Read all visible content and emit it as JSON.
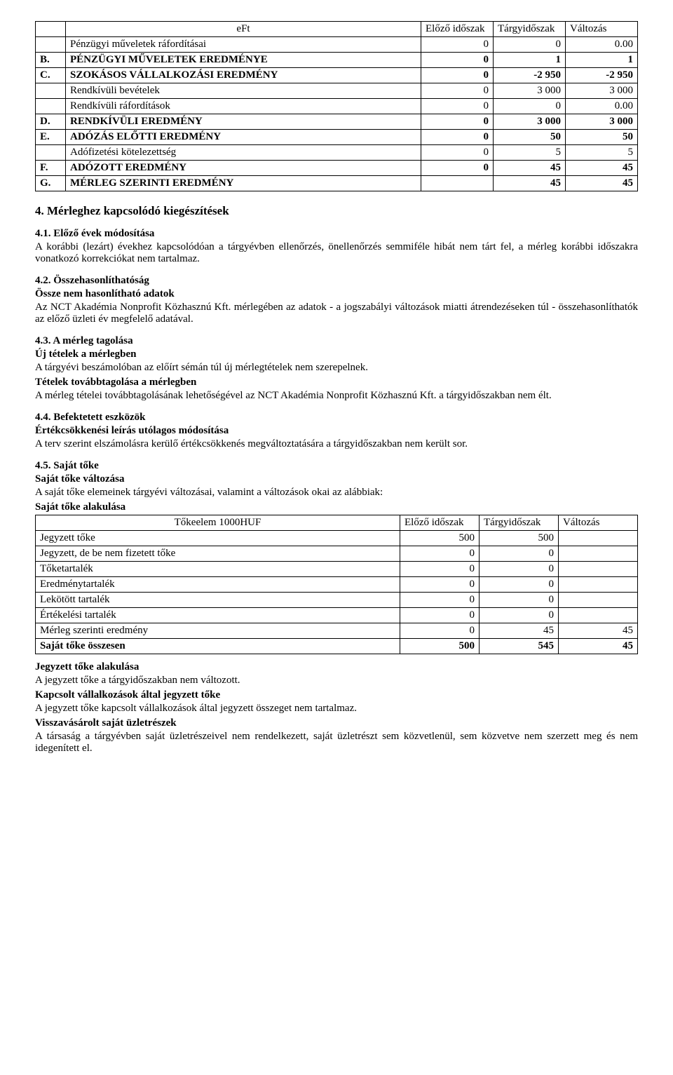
{
  "table1": {
    "headers": [
      "",
      "eFt",
      "Előző időszak",
      "Tárgyidőszak",
      "Változás"
    ],
    "rows": [
      {
        "lbl": "",
        "name": "Pénzügyi műveletek ráfordításai",
        "c1": "0",
        "c2": "0",
        "c3": "0.00",
        "bold": false
      },
      {
        "lbl": "B.",
        "name": "PÉNZÜGYI MŰVELETEK EREDMÉNYE",
        "c1": "0",
        "c2": "1",
        "c3": "1",
        "bold": true
      },
      {
        "lbl": "C.",
        "name": "SZOKÁSOS VÁLLALKOZÁSI EREDMÉNY",
        "c1": "0",
        "c2": "-2 950",
        "c3": "-2 950",
        "bold": true
      },
      {
        "lbl": "",
        "name": "Rendkívüli bevételek",
        "c1": "0",
        "c2": "3 000",
        "c3": "3 000",
        "bold": false
      },
      {
        "lbl": "",
        "name": "Rendkívüli ráfordítások",
        "c1": "0",
        "c2": "0",
        "c3": "0.00",
        "bold": false
      },
      {
        "lbl": "D.",
        "name": "RENDKÍVÜLI EREDMÉNY",
        "c1": "0",
        "c2": "3 000",
        "c3": "3 000",
        "bold": true
      },
      {
        "lbl": "E.",
        "name": "ADÓZÁS ELŐTTI EREDMÉNY",
        "c1": "0",
        "c2": "50",
        "c3": "50",
        "bold": true
      },
      {
        "lbl": "",
        "name": "Adófizetési kötelezettség",
        "c1": "0",
        "c2": "5",
        "c3": "5",
        "bold": false
      },
      {
        "lbl": "F.",
        "name": "ADÓZOTT EREDMÉNY",
        "c1": "0",
        "c2": "45",
        "c3": "45",
        "bold": true
      },
      {
        "lbl": "G.",
        "name": "MÉRLEG SZERINTI EREDMÉNY",
        "c1": "",
        "c2": "45",
        "c3": "45",
        "bold": true
      }
    ]
  },
  "sec4": {
    "title": "4. Mérleghez kapcsolódó kiegészítések",
    "s41": {
      "title": "4.1. Előző évek módosítása",
      "text": "A korábbi (lezárt) évekhez kapcsolódóan a tárgyévben ellenőrzés, önellenőrzés semmiféle hibát nem tárt fel, a mérleg korábbi időszakra vonatkozó korrekciókat nem tartalmaz."
    },
    "s42": {
      "title": "4.2. Összehasonlíthatóság",
      "sub": "Össze nem hasonlítható adatok",
      "text": "Az NCT Akadémia Nonprofit Közhasznú Kft. mérlegében az adatok - a jogszabályi változások miatti átrendezéseken túl - összehasonlíthatók az előző üzleti év megfelelő adatával."
    },
    "s43": {
      "title": "4.3. A mérleg tagolása",
      "sub1": "Új tételek a mérlegben",
      "text1": "A tárgyévi beszámolóban az előírt sémán túl új mérlegtételek nem szerepelnek.",
      "sub2": "Tételek továbbtagolása a mérlegben",
      "text2": "A mérleg tételei továbbtagolásának lehetőségével az NCT Akadémia Nonprofit Közhasznú Kft. a tárgyidőszakban nem élt."
    },
    "s44": {
      "title": "4.4. Befektetett eszközök",
      "sub": "Értékcsökkenési leírás utólagos módosítása",
      "text": "A terv szerint elszámolásra kerülő értékcsökkenés megváltoztatására a tárgyidőszakban nem került sor."
    },
    "s45": {
      "title": "4.5. Saját tőke",
      "sub1": "Saját tőke változása",
      "text1": "A saját tőke elemeinek tárgyévi változásai, valamint a változások okai az alábbiak:",
      "sub2": "Saját tőke alakulása"
    }
  },
  "table2": {
    "headers": [
      "Tőkeelem 1000HUF",
      "Előző időszak",
      "Tárgyidőszak",
      "Változás"
    ],
    "rows": [
      {
        "name": "Jegyzett tőke",
        "c1": "500",
        "c2": "500",
        "c3": "",
        "bold": false
      },
      {
        "name": "Jegyzett, de be nem fizetett tőke",
        "c1": "0",
        "c2": "0",
        "c3": "",
        "bold": false
      },
      {
        "name": "Tőketartalék",
        "c1": "0",
        "c2": "0",
        "c3": "",
        "bold": false
      },
      {
        "name": "Eredménytartalék",
        "c1": "0",
        "c2": "0",
        "c3": "",
        "bold": false
      },
      {
        "name": "Lekötött tartalék",
        "c1": "0",
        "c2": "0",
        "c3": "",
        "bold": false
      },
      {
        "name": "Értékelési tartalék",
        "c1": "0",
        "c2": "0",
        "c3": "",
        "bold": false
      },
      {
        "name": "Mérleg szerinti eredmény",
        "c1": "0",
        "c2": "45",
        "c3": "45",
        "bold": false
      },
      {
        "name": "Saját tőke összesen",
        "c1": "500",
        "c2": "545",
        "c3": "45",
        "bold": true
      }
    ]
  },
  "footer": {
    "h1": "Jegyzett tőke alakulása",
    "t1": "A jegyzett tőke a tárgyidőszakban nem változott.",
    "h2": "Kapcsolt vállalkozások által jegyzett tőke",
    "t2": "A jegyzett tőke kapcsolt vállalkozások által jegyzett összeget nem tartalmaz.",
    "h3": "Visszavásárolt saját üzletrészek",
    "t3": "A társaság a tárgyévben saját üzletrészeivel nem rendelkezett, saját üzletrészt sem közvetlenül, sem közvetve nem szerzett meg és nem idegenített el."
  }
}
